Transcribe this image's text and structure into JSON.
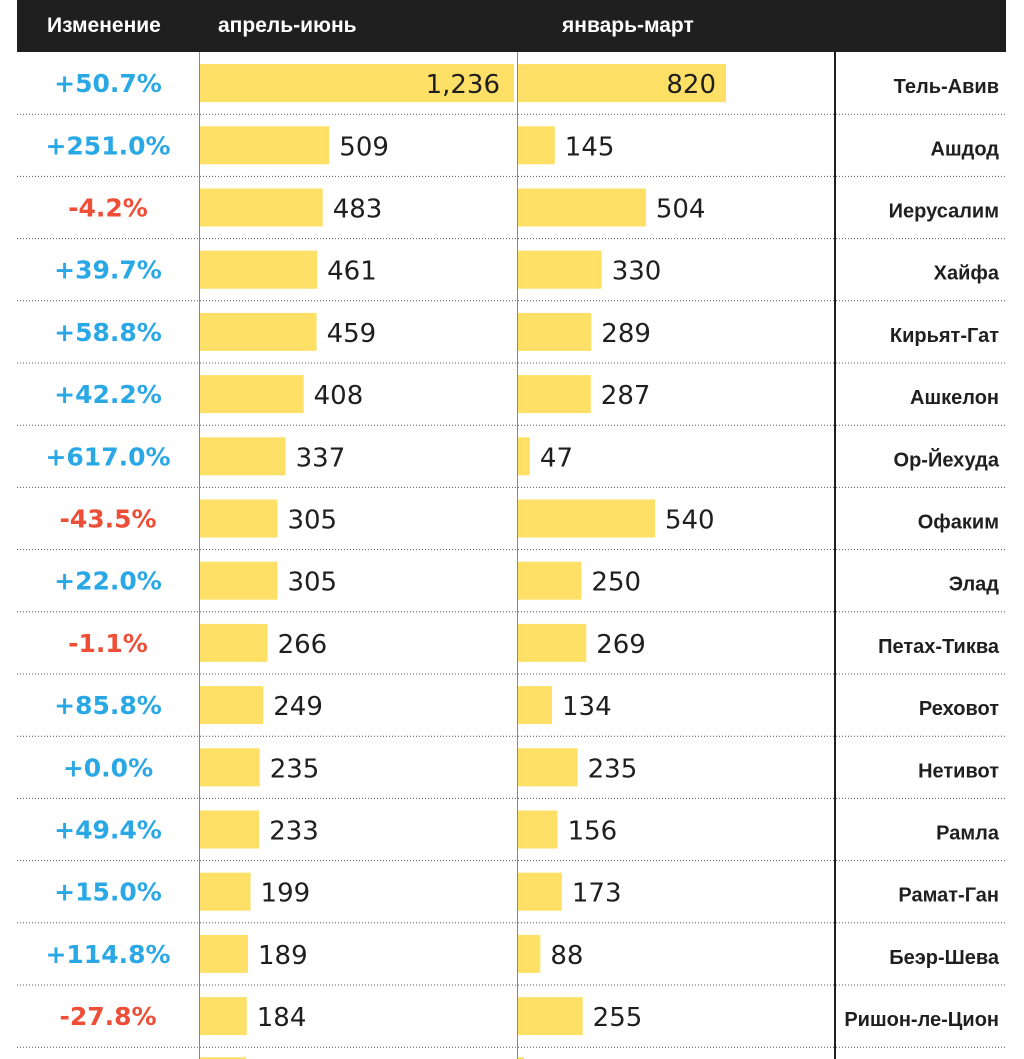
{
  "header": {
    "change_label": "Изменение",
    "q2_label": "апрель-июнь",
    "q1_label": "январь-март"
  },
  "colors": {
    "bar": "#ffe066",
    "positive": "#2aa8e6",
    "negative": "#ee4d36",
    "header_bg": "#1f1f1f",
    "text": "#1f1f1f"
  },
  "chart_data": {
    "type": "bar",
    "title": "",
    "categories": [
      "Тель-Авив",
      "Ашдод",
      "Иерусалим",
      "Хайфа",
      "Кирьят-Гат",
      "Ашкелон",
      "Ор-Йехуда",
      "Офаким",
      "Элад",
      "Петах-Тиква",
      "Реховот",
      "Нетивот",
      "Рамла",
      "Рамат-Ган",
      "Беэр-Шева",
      "Ришон-ле-Цион"
    ],
    "series": [
      {
        "name": "апрель-июнь",
        "values": [
          1236,
          509,
          483,
          461,
          459,
          408,
          337,
          305,
          305,
          266,
          249,
          235,
          233,
          199,
          189,
          184
        ],
        "labels": [
          "1,236",
          "509",
          "483",
          "461",
          "459",
          "408",
          "337",
          "305",
          "305",
          "266",
          "249",
          "235",
          "233",
          "199",
          "189",
          "184"
        ]
      },
      {
        "name": "январь-март",
        "values": [
          820,
          145,
          504,
          330,
          289,
          287,
          47,
          540,
          250,
          269,
          134,
          235,
          156,
          173,
          88,
          255
        ],
        "labels": [
          "820",
          "145",
          "504",
          "330",
          "289",
          "287",
          "47",
          "540",
          "250",
          "269",
          "134",
          "235",
          "156",
          "173",
          "88",
          "255"
        ]
      }
    ],
    "changes": [
      "+50.7%",
      "+251.0%",
      "-4.2%",
      "+39.7%",
      "+58.8%",
      "+42.2%",
      "+617.0%",
      "-43.5%",
      "+22.0%",
      "-1.1%",
      "+85.8%",
      "+0.0%",
      "+49.4%",
      "+15.0%",
      "+114.8%",
      "-27.8%"
    ],
    "change_signs": [
      "positive",
      "positive",
      "negative",
      "positive",
      "positive",
      "positive",
      "positive",
      "negative",
      "positive",
      "negative",
      "positive",
      "positive",
      "positive",
      "positive",
      "positive",
      "negative"
    ],
    "xlim": [
      0,
      1236
    ],
    "grid": false,
    "legend": "none"
  }
}
